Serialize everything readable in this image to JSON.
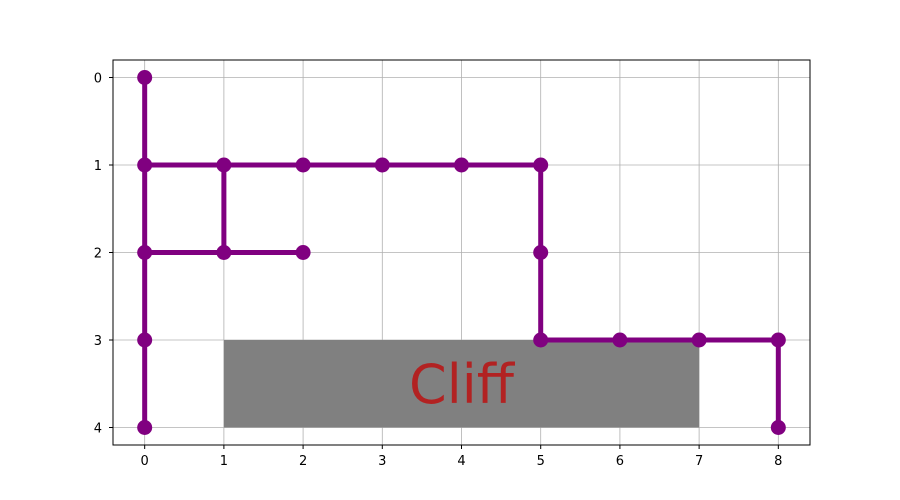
{
  "chart_data": {
    "type": "line",
    "title": "",
    "xlabel": "",
    "ylabel": "",
    "xlim": [
      -0.4,
      8.4
    ],
    "ylim": [
      4.2,
      -0.2
    ],
    "y_inverted": true,
    "grid": true,
    "x_ticks": [
      0,
      1,
      2,
      3,
      4,
      5,
      6,
      7,
      8
    ],
    "y_ticks": [
      0,
      1,
      2,
      3,
      4
    ],
    "path_color": "#800080",
    "cliff": {
      "label": "Cliff",
      "x_range": [
        1,
        7
      ],
      "y_range": [
        3,
        4
      ],
      "fill_color": "#808080",
      "text_color": "#b22222"
    },
    "segments": [
      [
        [
          0,
          0
        ],
        [
          0,
          1
        ],
        [
          0,
          2
        ],
        [
          0,
          3
        ],
        [
          0,
          4
        ]
      ],
      [
        [
          0,
          1
        ],
        [
          1,
          1
        ],
        [
          2,
          1
        ],
        [
          3,
          1
        ],
        [
          4,
          1
        ],
        [
          5,
          1
        ]
      ],
      [
        [
          5,
          1
        ],
        [
          5,
          2
        ],
        [
          5,
          3
        ]
      ],
      [
        [
          5,
          3
        ],
        [
          6,
          3
        ],
        [
          7,
          3
        ],
        [
          8,
          3
        ]
      ],
      [
        [
          8,
          3
        ],
        [
          8,
          4
        ]
      ],
      [
        [
          1,
          1
        ],
        [
          1,
          2
        ]
      ],
      [
        [
          0,
          2
        ],
        [
          1,
          2
        ],
        [
          2,
          2
        ]
      ]
    ],
    "points": [
      [
        0,
        0
      ],
      [
        0,
        1
      ],
      [
        0,
        2
      ],
      [
        0,
        3
      ],
      [
        0,
        4
      ],
      [
        1,
        1
      ],
      [
        2,
        1
      ],
      [
        3,
        1
      ],
      [
        4,
        1
      ],
      [
        5,
        1
      ],
      [
        1,
        2
      ],
      [
        2,
        2
      ],
      [
        5,
        2
      ],
      [
        5,
        3
      ],
      [
        6,
        3
      ],
      [
        7,
        3
      ],
      [
        8,
        3
      ],
      [
        8,
        4
      ]
    ]
  }
}
